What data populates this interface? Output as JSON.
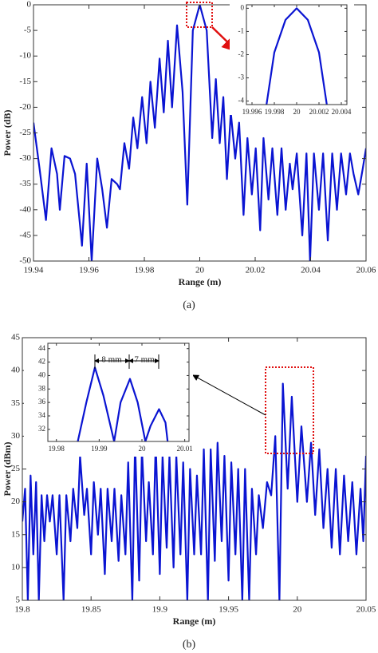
{
  "chart_data": [
    {
      "type": "line",
      "xlabel": "Range (m)",
      "ylabel": "Power (dB)",
      "caption": "(a)",
      "color": "#0a14d2",
      "xlim": [
        19.94,
        20.06
      ],
      "xticks": [
        19.94,
        19.96,
        19.98,
        20,
        20.02,
        20.04,
        20.06
      ],
      "ylim": [
        -50,
        0
      ],
      "yticks": [
        0,
        -5,
        -10,
        -15,
        -20,
        -25,
        -30,
        -35,
        -40,
        -45,
        -50
      ],
      "x": [
        19.94,
        19.9422,
        19.9445,
        19.9465,
        19.9485,
        19.9495,
        19.9512,
        19.9532,
        19.955,
        19.9575,
        19.9592,
        19.961,
        19.963,
        19.9648,
        19.9665,
        19.9682,
        19.9702,
        19.9712,
        19.9728,
        19.9745,
        19.976,
        19.9775,
        19.9792,
        19.9808,
        19.9822,
        19.9838,
        19.9855,
        19.987,
        19.9885,
        19.99,
        19.9918,
        19.9938,
        19.9955,
        19.9975,
        20,
        20.0025,
        20.0045,
        20.0058,
        20.0072,
        20.0085,
        20.0098,
        20.0112,
        20.0128,
        20.0142,
        20.0158,
        20.0172,
        20.0188,
        20.0202,
        20.0218,
        20.023,
        20.0248,
        20.0262,
        20.028,
        20.0295,
        20.031,
        20.0325,
        20.0335,
        20.035,
        20.037,
        20.0385,
        20.0398,
        20.0412,
        20.043,
        20.0445,
        20.0462,
        20.0478,
        20.0495,
        20.051,
        20.0528,
        20.0542,
        20.0555,
        20.0572,
        20.0588,
        20.06
      ],
      "values": [
        -23,
        -32,
        -42,
        -28,
        -33,
        -40,
        -29.5,
        -30,
        -33,
        -47,
        -31,
        -50,
        -30,
        -36,
        -43.5,
        -34,
        -35,
        -36,
        -27,
        -32,
        -22,
        -28,
        -18,
        -27,
        -15,
        -24,
        -10.5,
        -21,
        -7,
        -20,
        -4,
        -17,
        -39,
        -5,
        0,
        -5,
        -26,
        -14.5,
        -27,
        -18,
        -34,
        -21,
        -30,
        -23,
        -41,
        -26,
        -37,
        -28,
        -44,
        -26,
        -38,
        -28,
        -41,
        -28,
        -40,
        -31,
        -36,
        -29,
        -45,
        -29,
        -50,
        -29,
        -40,
        -29,
        -46,
        -29,
        -40,
        -29,
        -37,
        -29,
        -33,
        -37,
        -32,
        -28
      ]
    },
    {
      "type": "line",
      "color": "#0a14d2",
      "xlim": [
        19.9955,
        20.0045
      ],
      "xticks": [
        19.996,
        19.998,
        20,
        20.002,
        20.004
      ],
      "ylim": [
        -4.15,
        0.15
      ],
      "yticks": [
        0,
        -1,
        -2,
        -3,
        -4
      ],
      "x": [
        19.9973,
        19.998,
        19.9985,
        19.999,
        20,
        20.001,
        20.0015,
        20.002,
        20.0027
      ],
      "values": [
        -4.15,
        -1.9,
        -1.2,
        -0.5,
        0,
        -0.5,
        -1.2,
        -1.9,
        -4.15
      ]
    },
    {
      "type": "line",
      "xlabel": "Range (m)",
      "ylabel": "Power (dBm)",
      "caption": "(b)",
      "color": "#0a14d2",
      "xlim": [
        19.8,
        20.05
      ],
      "xticks": [
        19.8,
        19.85,
        19.9,
        19.95,
        20,
        20.05
      ],
      "ylim": [
        5,
        45
      ],
      "yticks": [
        5,
        10,
        15,
        20,
        25,
        30,
        35,
        40,
        45
      ],
      "x": [
        19.8,
        19.802,
        19.804,
        19.806,
        19.808,
        19.81,
        19.812,
        19.814,
        19.816,
        19.818,
        19.82,
        19.822,
        19.825,
        19.827,
        19.83,
        19.832,
        19.835,
        19.837,
        19.84,
        19.842,
        19.845,
        19.847,
        19.85,
        19.852,
        19.855,
        19.857,
        19.86,
        19.862,
        19.865,
        19.867,
        19.87,
        19.872,
        19.875,
        19.877,
        19.88,
        19.882,
        19.885,
        19.887,
        19.89,
        19.892,
        19.895,
        19.897,
        19.9,
        19.902,
        19.905,
        19.907,
        19.91,
        19.912,
        19.915,
        19.917,
        19.92,
        19.922,
        19.925,
        19.927,
        19.93,
        19.932,
        19.935,
        19.937,
        19.94,
        19.942,
        19.945,
        19.947,
        19.95,
        19.952,
        19.955,
        19.957,
        19.96,
        19.962,
        19.965,
        19.967,
        19.97,
        19.972,
        19.975,
        19.978,
        19.981,
        19.984,
        19.987,
        19.9895,
        19.993,
        19.996,
        20,
        20.003,
        20.007,
        20.01,
        20.013,
        20.016,
        20.019,
        20.022,
        20.025,
        20.028,
        20.031,
        20.034,
        20.037,
        20.04,
        20.043,
        20.046,
        20.048,
        20.05
      ],
      "values": [
        17,
        22,
        5,
        24,
        12,
        23,
        5,
        21,
        14,
        21,
        17,
        21,
        12,
        21,
        5,
        21,
        14,
        22,
        16,
        27,
        18,
        22,
        12,
        23,
        15,
        22,
        9,
        22,
        14,
        22,
        11,
        21,
        12,
        26,
        5,
        29,
        8,
        28,
        14,
        23,
        12,
        29,
        9,
        27,
        13,
        27,
        10,
        27,
        12,
        26,
        5,
        25,
        12,
        24,
        12,
        28,
        5,
        28,
        11,
        29,
        14,
        27,
        8,
        26,
        12,
        25,
        5,
        25,
        5,
        22,
        12,
        21,
        16,
        23,
        21,
        30,
        5,
        38,
        22,
        36,
        20,
        31.5,
        20,
        29,
        18,
        28,
        16,
        25,
        13,
        25,
        12,
        24,
        14,
        23,
        12,
        22,
        14,
        27
      ]
    },
    {
      "type": "line",
      "color": "#0a14d2",
      "annotations": [
        "8 mm",
        "7 mm"
      ],
      "xlim": [
        19.978,
        20.011
      ],
      "xticks": [
        19.98,
        19.99,
        20,
        20.01
      ],
      "ylim": [
        30.2,
        44.8
      ],
      "yticks": [
        32,
        34,
        36,
        38,
        40,
        42,
        44
      ],
      "x": [
        19.985,
        19.987,
        19.989,
        19.991,
        19.9935,
        19.995,
        19.9972,
        19.999,
        20.0008,
        20.002,
        20.004,
        20.0055,
        20.006
      ],
      "values": [
        30.2,
        36,
        41.2,
        37,
        30.2,
        36,
        39.5,
        36,
        30.2,
        32.5,
        35,
        33,
        30.2
      ]
    }
  ]
}
